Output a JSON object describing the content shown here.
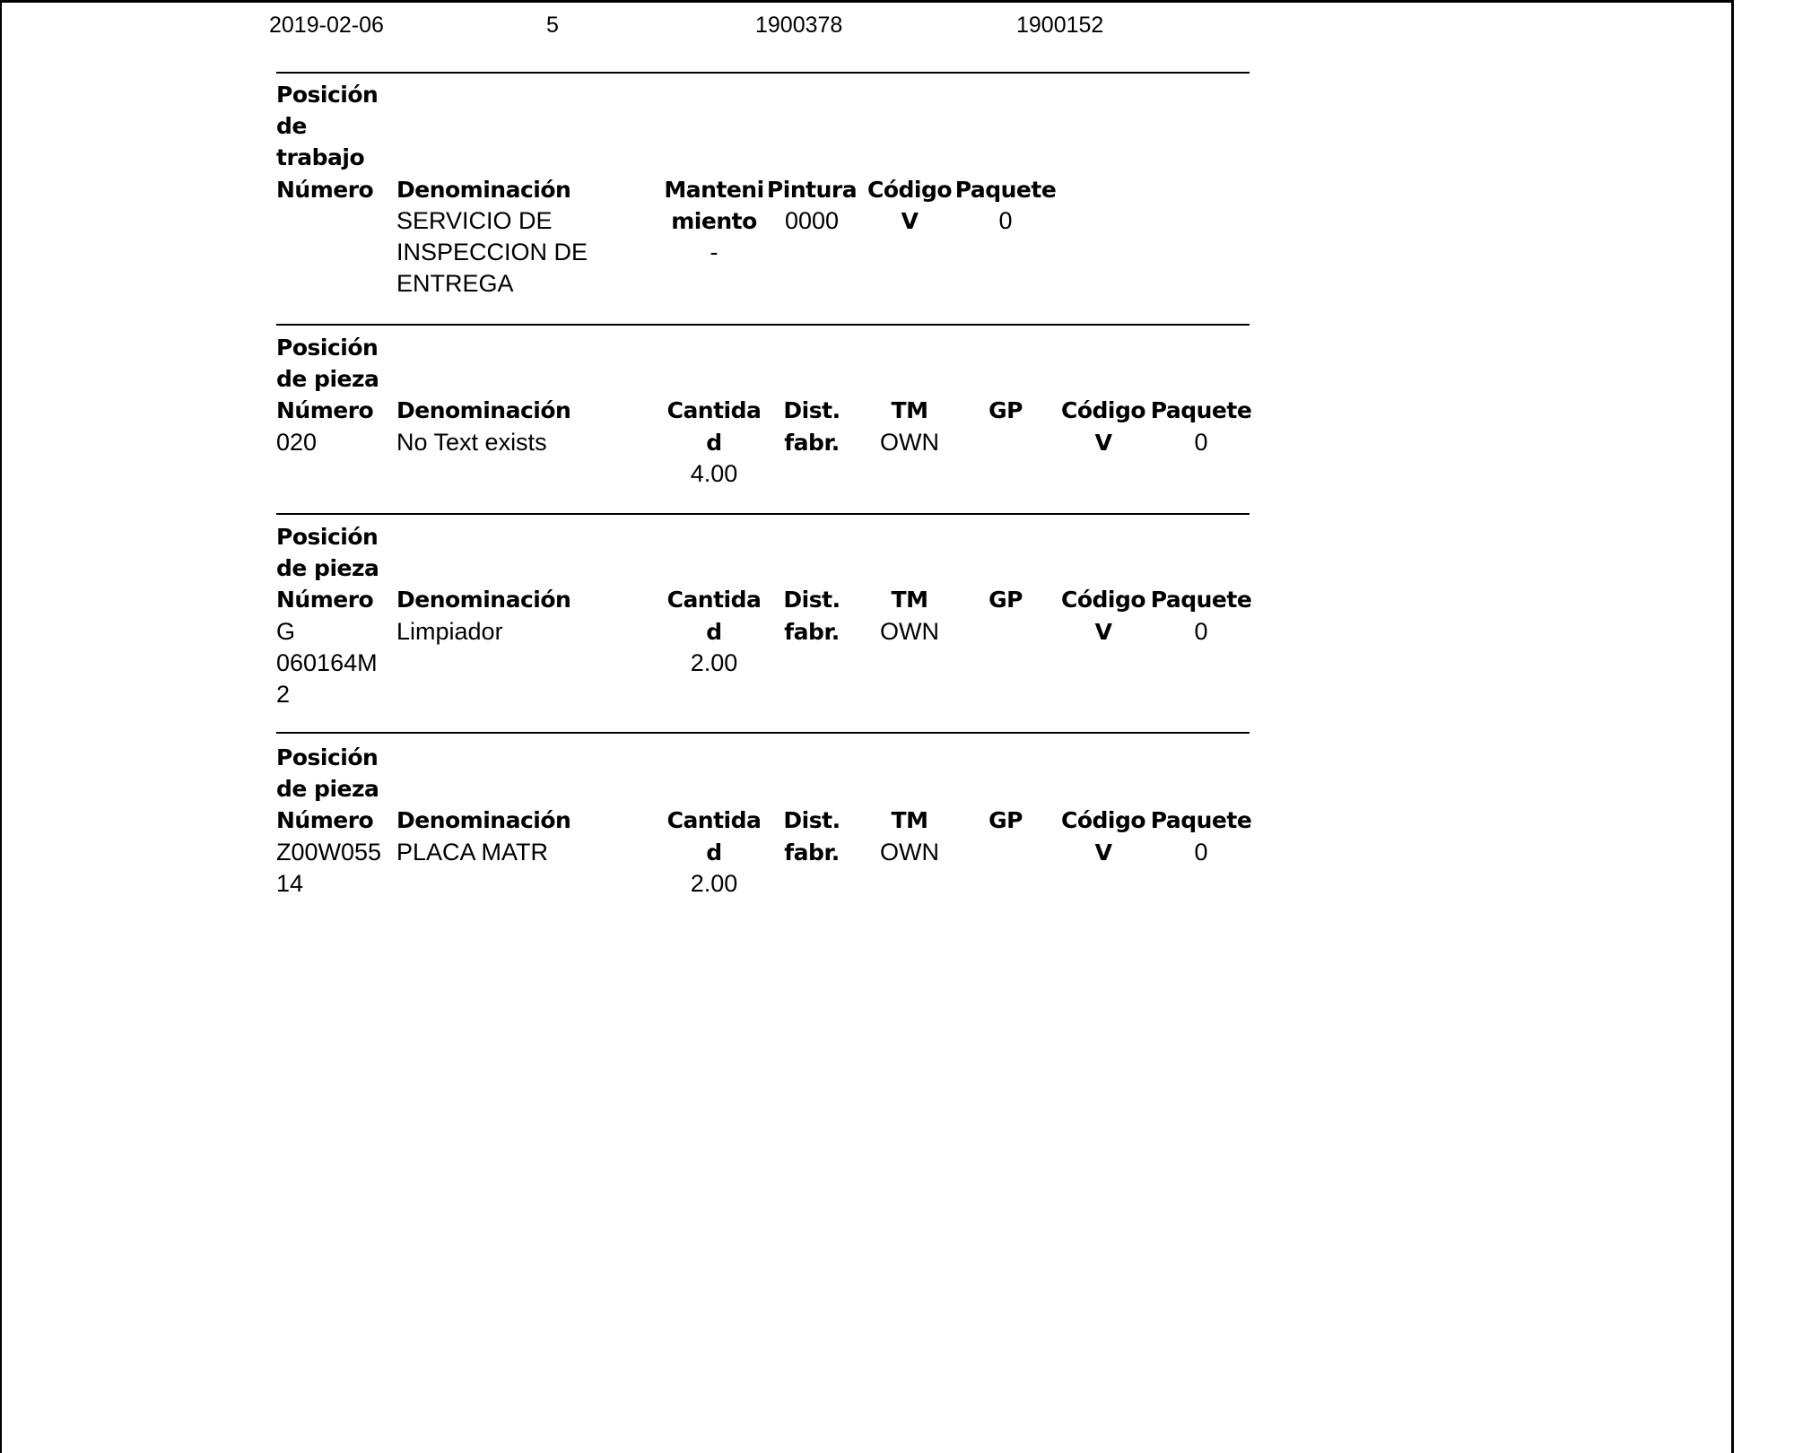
{
  "top_row": {
    "date": "2019-02-06",
    "number": "5",
    "ref1": "1900378",
    "ref2": "1900152"
  },
  "work_position": {
    "title": "Posición\nde\ntrabajo",
    "headers": {
      "numero": "Número",
      "denominacion": "Denominación",
      "mantenimiento": "Manteni\nmiento",
      "pintura": "Pintura",
      "codigo": "Código",
      "paquete": "Paquete"
    },
    "row": {
      "numero": "",
      "denominacion": "SERVICIO DE\nINSPECCION DE\nENTREGA",
      "mantenimiento": "-",
      "pintura": "0000",
      "codigo": "V",
      "paquete": "0"
    }
  },
  "part_headers": {
    "title": "Posición\nde pieza",
    "numero": "Número",
    "denominacion": "Denominación",
    "cantidad": "Cantida\nd",
    "dist": "Dist.\nfabr.",
    "tm": "TM",
    "gp": "GP",
    "codigo": "Código",
    "paquete": "Paquete"
  },
  "parts": [
    {
      "numero": "020",
      "denominacion": "No Text exists",
      "cantidad": "4.00",
      "dist": "",
      "tm": "OWN",
      "gp": "",
      "codigo": "V",
      "paquete": "0"
    },
    {
      "numero": "G\n060164M\n2",
      "denominacion": "Limpiador",
      "cantidad": "2.00",
      "dist": "",
      "tm": "OWN",
      "gp": "",
      "codigo": "V",
      "paquete": "0"
    },
    {
      "numero": "Z00W055\n14",
      "denominacion": "PLACA MATR",
      "cantidad": "2.00",
      "dist": "",
      "tm": "OWN",
      "gp": "",
      "codigo": "V",
      "paquete": "0"
    }
  ]
}
